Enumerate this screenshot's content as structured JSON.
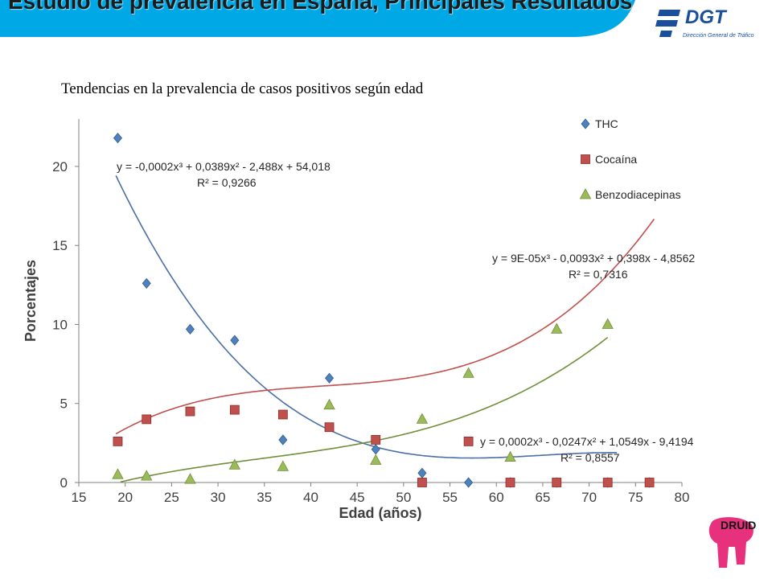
{
  "slide": {
    "title": "Estudio de prevalencia en España, Principales Resultados",
    "subtitle": "Tendencias en la prevalencia de casos positivos según edad"
  },
  "logos": {
    "dgt": {
      "name": "DGT",
      "subtitle": "Dirección General de Tráfico",
      "color": "#1a4f9c"
    },
    "druid": {
      "name": "DRUID",
      "color": "#e8317c"
    }
  },
  "chart_data": {
    "type": "scatter",
    "xlabel": "Edad (años)",
    "ylabel": "Porcentajes",
    "xlim": [
      15,
      80
    ],
    "ylim": [
      0,
      23
    ],
    "xticks": [
      15,
      20,
      25,
      30,
      35,
      40,
      45,
      50,
      55,
      60,
      65,
      70,
      75,
      80
    ],
    "yticks": [
      0,
      5,
      10,
      15,
      20
    ],
    "grid": false,
    "legend_position": "top-right",
    "series": [
      {
        "name": "THC",
        "marker": "diamond",
        "color": "#4f81bd",
        "points": [
          [
            19.2,
            21.8
          ],
          [
            22.3,
            12.6
          ],
          [
            27,
            9.7
          ],
          [
            31.8,
            9.0
          ],
          [
            37,
            2.7
          ],
          [
            42,
            6.6
          ],
          [
            47,
            2.1
          ],
          [
            52,
            0.6
          ],
          [
            57,
            0.0
          ],
          [
            61.5,
            0.0
          ],
          [
            66.5,
            0.0
          ],
          [
            72,
            0.0
          ],
          [
            76.5,
            0.0
          ]
        ],
        "trend": {
          "coeffs": [
            -0.0002,
            0.0389,
            -2.488,
            54.018
          ],
          "range": [
            19,
            73
          ],
          "color": "#4a6fa5"
        },
        "equation": "y = -0,0002x³ + 0,0389x² - 2,488x + 54,018",
        "r2": "R² = 0,9266"
      },
      {
        "name": "Cocaína",
        "marker": "square",
        "color": "#c0504d",
        "points": [
          [
            19.2,
            2.6
          ],
          [
            22.3,
            4.0
          ],
          [
            27,
            4.5
          ],
          [
            31.8,
            4.6
          ],
          [
            37,
            4.3
          ],
          [
            42,
            3.5
          ],
          [
            47,
            2.7
          ],
          [
            52,
            0.0
          ],
          [
            57,
            2.6
          ],
          [
            61.5,
            0.0
          ],
          [
            66.5,
            0.0
          ],
          [
            72,
            0.0
          ],
          [
            76.5,
            0.0
          ]
        ],
        "trend": {
          "coeffs": [
            0.0002,
            -0.0247,
            1.0549,
            -9.4194
          ],
          "range": [
            19,
            77
          ],
          "color": "#c0504d"
        },
        "equation": "y = 0,0002x³ - 0,0247x² + 1,0549x - 9,4194",
        "r2": "R² = 0,8557"
      },
      {
        "name": "Benzodiacepinas",
        "marker": "triangle",
        "color": "#9bbb59",
        "points": [
          [
            19.2,
            0.5
          ],
          [
            22.3,
            0.4
          ],
          [
            27,
            0.2
          ],
          [
            31.8,
            1.1
          ],
          [
            37,
            1.0
          ],
          [
            42,
            4.9
          ],
          [
            47,
            1.4
          ],
          [
            52,
            4.0
          ],
          [
            57,
            6.9
          ],
          [
            61.5,
            1.6
          ],
          [
            66.5,
            9.7
          ],
          [
            72,
            10.0
          ]
        ],
        "trend": {
          "coeffs": [
            9e-05,
            -0.0093,
            0.398,
            -4.8562
          ],
          "range": [
            19.5,
            72
          ],
          "color": "#6f8f3b"
        },
        "equation": "y = 9E-05x³ - 0,0093x² + 0,398x - 4,8562",
        "r2": "R² = 0,7316"
      }
    ]
  }
}
